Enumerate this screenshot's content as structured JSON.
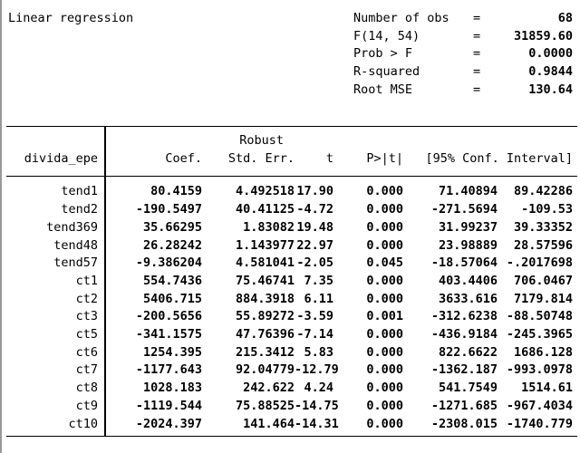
{
  "title": "Linear regression",
  "colors": {
    "background": "#ffffff",
    "text": "#000000",
    "table_rule": "#000000",
    "window_border": "#999999"
  },
  "stats": [
    {
      "label": "Number of obs",
      "eq": "=",
      "value": "68"
    },
    {
      "label": "F(14, 54)",
      "eq": "=",
      "value": "31859.60"
    },
    {
      "label": "Prob > F",
      "eq": "=",
      "value": "0.0000"
    },
    {
      "label": "R-squared",
      "eq": "=",
      "value": "0.9844"
    },
    {
      "label": "Root MSE",
      "eq": "=",
      "value": "130.64"
    }
  ],
  "table": {
    "dep_var": "divida_epe",
    "robust_label": "Robust",
    "col_headers": {
      "coef": "Coef.",
      "std_err": "Std. Err.",
      "t": "t",
      "p": "P>|t|",
      "ci": "[95% Conf. Interval]"
    },
    "rows": [
      {
        "name": "tend1",
        "coef": "80.4159",
        "std_err": "4.492518",
        "t": "17.90",
        "p": "0.000",
        "ci_low": "71.40894",
        "ci_high": "89.42286"
      },
      {
        "name": "tend2",
        "coef": "-190.5497",
        "std_err": "40.41125",
        "t": "-4.72",
        "p": "0.000",
        "ci_low": "-271.5694",
        "ci_high": "-109.53"
      },
      {
        "name": "tend369",
        "coef": "35.66295",
        "std_err": "1.83082",
        "t": "19.48",
        "p": "0.000",
        "ci_low": "31.99237",
        "ci_high": "39.33352"
      },
      {
        "name": "tend48",
        "coef": "26.28242",
        "std_err": "1.143977",
        "t": "22.97",
        "p": "0.000",
        "ci_low": "23.98889",
        "ci_high": "28.57596"
      },
      {
        "name": "tend57",
        "coef": "-9.386204",
        "std_err": "4.581041",
        "t": "-2.05",
        "p": "0.045",
        "ci_low": "-18.57064",
        "ci_high": "-.2017698"
      },
      {
        "name": "ct1",
        "coef": "554.7436",
        "std_err": "75.46741",
        "t": "7.35",
        "p": "0.000",
        "ci_low": "403.4406",
        "ci_high": "706.0467"
      },
      {
        "name": "ct2",
        "coef": "5406.715",
        "std_err": "884.3918",
        "t": "6.11",
        "p": "0.000",
        "ci_low": "3633.616",
        "ci_high": "7179.814"
      },
      {
        "name": "ct3",
        "coef": "-200.5656",
        "std_err": "55.89272",
        "t": "-3.59",
        "p": "0.001",
        "ci_low": "-312.6238",
        "ci_high": "-88.50748"
      },
      {
        "name": "ct5",
        "coef": "-341.1575",
        "std_err": "47.76396",
        "t": "-7.14",
        "p": "0.000",
        "ci_low": "-436.9184",
        "ci_high": "-245.3965"
      },
      {
        "name": "ct6",
        "coef": "1254.395",
        "std_err": "215.3412",
        "t": "5.83",
        "p": "0.000",
        "ci_low": "822.6622",
        "ci_high": "1686.128"
      },
      {
        "name": "ct7",
        "coef": "-1177.643",
        "std_err": "92.04779",
        "t": "-12.79",
        "p": "0.000",
        "ci_low": "-1362.187",
        "ci_high": "-993.0978"
      },
      {
        "name": "ct8",
        "coef": "1028.183",
        "std_err": "242.622",
        "t": "4.24",
        "p": "0.000",
        "ci_low": "541.7549",
        "ci_high": "1514.61"
      },
      {
        "name": "ct9",
        "coef": "-1119.544",
        "std_err": "75.88525",
        "t": "-14.75",
        "p": "0.000",
        "ci_low": "-1271.685",
        "ci_high": "-967.4034"
      },
      {
        "name": "ct10",
        "coef": "-2024.397",
        "std_err": "141.464",
        "t": "-14.31",
        "p": "0.000",
        "ci_low": "-2308.015",
        "ci_high": "-1740.779"
      }
    ]
  }
}
